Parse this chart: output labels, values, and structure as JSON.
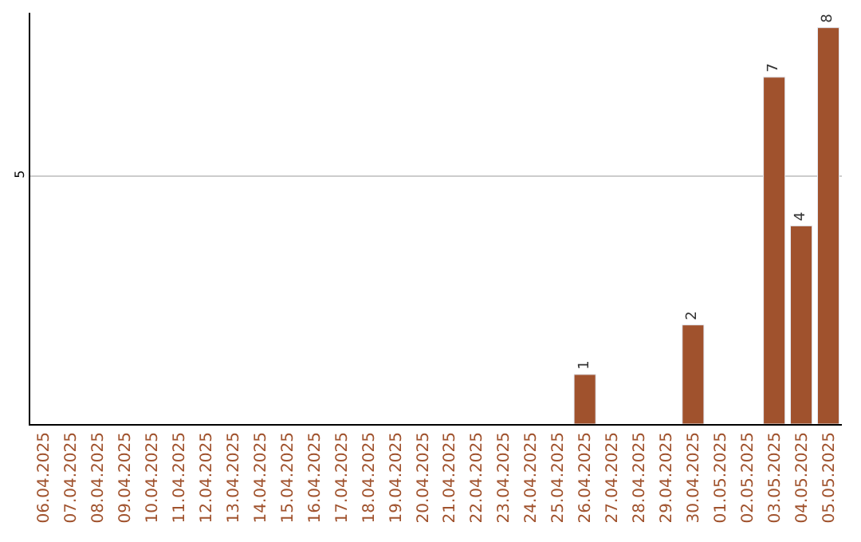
{
  "chart_data": {
    "type": "bar",
    "categories": [
      "06.04.2025",
      "07.04.2025",
      "08.04.2025",
      "09.04.2025",
      "10.04.2025",
      "11.04.2025",
      "12.04.2025",
      "13.04.2025",
      "14.04.2025",
      "15.04.2025",
      "16.04.2025",
      "17.04.2025",
      "18.04.2025",
      "19.04.2025",
      "20.04.2025",
      "21.04.2025",
      "22.04.2025",
      "23.04.2025",
      "24.04.2025",
      "25.04.2025",
      "26.04.2025",
      "27.04.2025",
      "28.04.2025",
      "29.04.2025",
      "30.04.2025",
      "01.05.2025",
      "02.05.2025",
      "03.05.2025",
      "04.05.2025",
      "05.05.2025"
    ],
    "values": [
      null,
      null,
      null,
      null,
      null,
      null,
      null,
      null,
      null,
      null,
      null,
      null,
      null,
      null,
      null,
      null,
      null,
      null,
      null,
      null,
      1,
      null,
      null,
      null,
      2,
      null,
      null,
      7,
      4,
      8
    ],
    "color": "#a0522d",
    "ylim": [
      0,
      8.3
    ],
    "yticks": [
      5
    ],
    "grid": "y",
    "data_labels": true
  }
}
